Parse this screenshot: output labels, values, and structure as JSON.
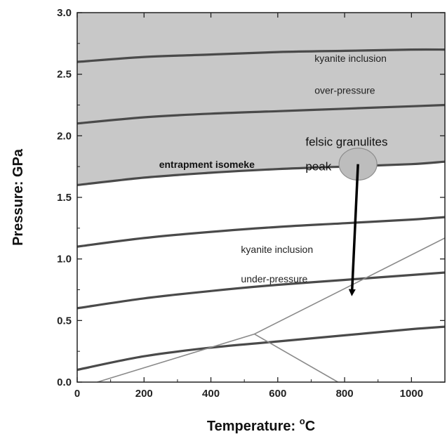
{
  "chart_data": {
    "type": "line",
    "xlabel": "Temperature: °C",
    "xlabel_main": "Temperature: ",
    "xlabel_sup": "o",
    "xlabel_unit": "C",
    "ylabel": "Pressure: GPa",
    "xlim": [
      0,
      1100
    ],
    "ylim": [
      0.0,
      3.0
    ],
    "x_ticks": [
      0,
      200,
      400,
      600,
      800,
      1000
    ],
    "x_tick_labels": [
      "0",
      "200",
      "400",
      "600",
      "800",
      "1000"
    ],
    "y_ticks": [
      0.0,
      0.5,
      1.0,
      1.5,
      2.0,
      2.5,
      3.0
    ],
    "y_tick_labels": [
      "0.0",
      "0.5",
      "1.0",
      "1.5",
      "2.0",
      "2.5",
      "3.0"
    ],
    "grid": false,
    "shaded_region": {
      "lower_isomeke": 3,
      "upper": 3.0,
      "color": "#c8c8c8"
    },
    "isomekes": [
      {
        "x": [
          0,
          200,
          400,
          600,
          800,
          1000,
          1100
        ],
        "y": [
          0.1,
          0.21,
          0.28,
          0.33,
          0.38,
          0.43,
          0.45
        ]
      },
      {
        "x": [
          0,
          200,
          400,
          600,
          800,
          1000,
          1100
        ],
        "y": [
          0.6,
          0.68,
          0.74,
          0.79,
          0.83,
          0.87,
          0.89
        ]
      },
      {
        "x": [
          0,
          200,
          400,
          600,
          800,
          1000,
          1100
        ],
        "y": [
          1.1,
          1.17,
          1.22,
          1.26,
          1.29,
          1.32,
          1.34
        ]
      },
      {
        "x": [
          0,
          200,
          400,
          600,
          800,
          1000,
          1100
        ],
        "y": [
          1.6,
          1.66,
          1.7,
          1.73,
          1.75,
          1.77,
          1.79
        ]
      },
      {
        "x": [
          0,
          200,
          400,
          600,
          800,
          1000,
          1100
        ],
        "y": [
          2.1,
          2.15,
          2.18,
          2.2,
          2.22,
          2.24,
          2.25
        ]
      },
      {
        "x": [
          0,
          200,
          400,
          600,
          800,
          1000,
          1100
        ],
        "y": [
          2.6,
          2.64,
          2.66,
          2.68,
          2.69,
          2.7,
          2.7
        ]
      }
    ],
    "phase_lines": [
      {
        "x": [
          60,
          530,
          1100
        ],
        "y": [
          0.0,
          0.39,
          1.17
        ]
      },
      {
        "x": [
          530,
          780
        ],
        "y": [
          0.39,
          0.0
        ]
      }
    ],
    "peak": {
      "x": 840,
      "y": 1.77,
      "rx": 27,
      "ry": 0.13
    },
    "arrow": {
      "from": [
        840,
        1.77
      ],
      "to": [
        822,
        0.76
      ]
    },
    "annotations": [
      {
        "text": "kyanite inclusion",
        "x": 710,
        "y": 2.6,
        "style": "normal"
      },
      {
        "text": "over-pressure",
        "x": 710,
        "y": 2.34,
        "style": "normal"
      },
      {
        "text": "felsic granulites",
        "x": 683,
        "y": 1.92,
        "style": "big"
      },
      {
        "text": "peak",
        "x": 683,
        "y": 1.72,
        "style": "big"
      },
      {
        "text": "entrapment isomeke",
        "x": 245,
        "y": 1.74,
        "style": "bold"
      },
      {
        "text": "kyanite inclusion",
        "x": 490,
        "y": 1.05,
        "style": "normal"
      },
      {
        "text": "under-pressure",
        "x": 490,
        "y": 0.81,
        "style": "normal"
      }
    ]
  }
}
